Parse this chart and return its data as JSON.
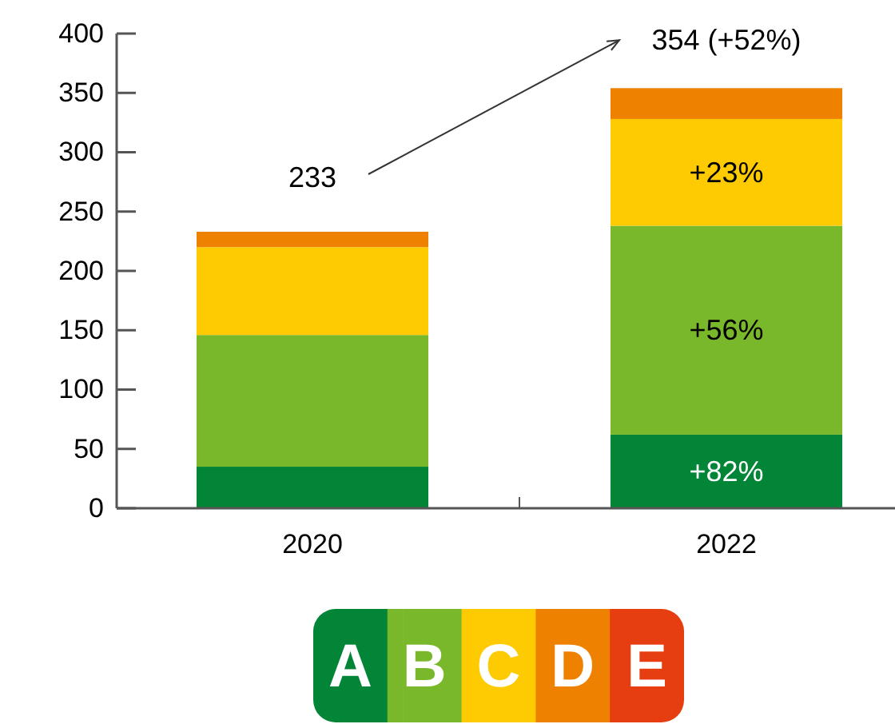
{
  "chart_data": {
    "type": "bar",
    "stacked": true,
    "categories": [
      "2020",
      "2022"
    ],
    "series": [
      {
        "name": "A",
        "color": "#038537",
        "values": [
          35,
          62
        ]
      },
      {
        "name": "B",
        "color": "#78b82a",
        "values": [
          111,
          176
        ]
      },
      {
        "name": "C",
        "color": "#fecb02",
        "values": [
          74,
          90
        ]
      },
      {
        "name": "D",
        "color": "#ee8100",
        "values": [
          13,
          26
        ]
      },
      {
        "name": "E",
        "color": "#e63e11",
        "values": [
          null,
          null
        ]
      }
    ],
    "ylim": [
      0,
      400
    ],
    "yticks": [
      0,
      50,
      100,
      150,
      200,
      250,
      300,
      350,
      400
    ],
    "annotations": [
      {
        "text": "233",
        "x": "2020",
        "y": 233
      },
      {
        "text": "354 (+52%)",
        "x": "2022",
        "y": 354
      },
      "+82%",
      "+56%",
      "+23%"
    ],
    "legend": "bottom",
    "grid": false
  }
}
